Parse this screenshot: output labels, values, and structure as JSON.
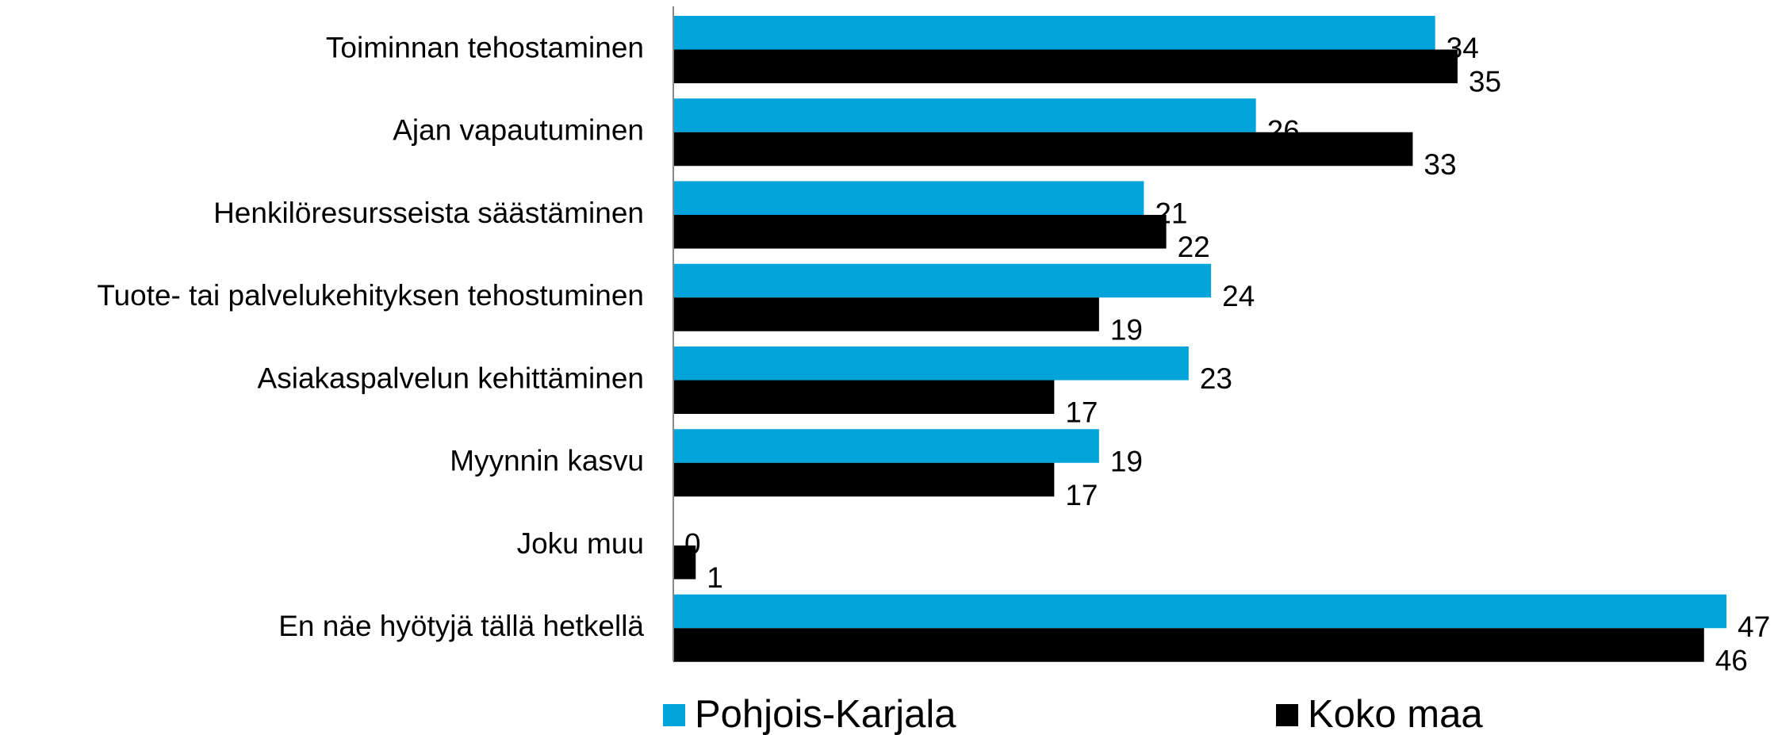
{
  "chart_data": {
    "type": "bar",
    "orientation": "horizontal",
    "categories": [
      "Toiminnan tehostaminen",
      "Ajan vapautuminen",
      "Henkilöresursseista säästäminen",
      "Tuote- tai palvelukehityksen tehostuminen",
      "Asiakaspalvelun kehittäminen",
      "Myynnin kasvu",
      "Joku muu",
      "En näe hyötyjä tällä hetkellä"
    ],
    "series": [
      {
        "name": "Pohjois-Karjala",
        "color": "#00a3da",
        "values": [
          34,
          26,
          21,
          24,
          23,
          19,
          0,
          47
        ]
      },
      {
        "name": "Koko maa",
        "color": "#000000",
        "values": [
          35,
          33,
          22,
          19,
          17,
          17,
          1,
          46
        ]
      }
    ],
    "legend": "bottom"
  }
}
